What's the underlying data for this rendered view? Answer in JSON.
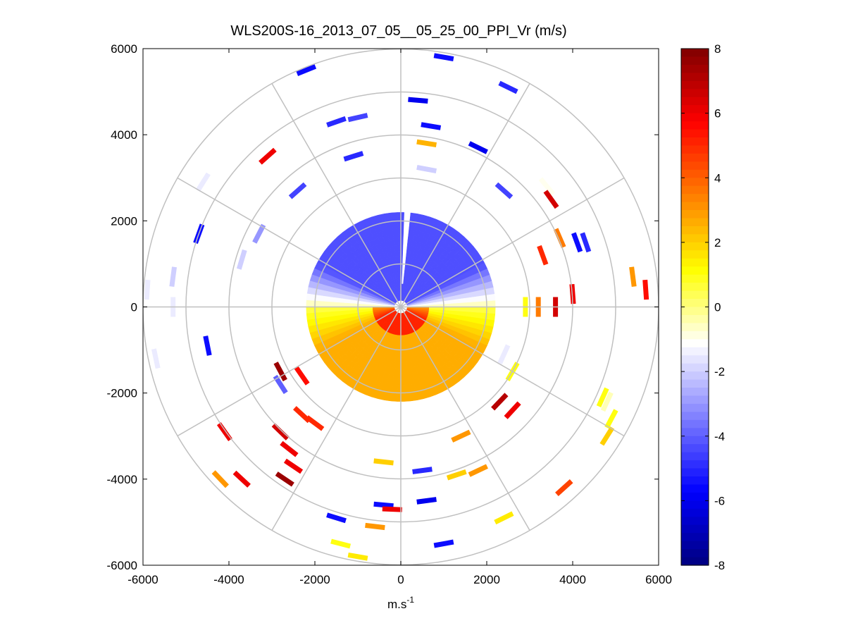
{
  "chart_data": {
    "type": "polar-scan-ppi",
    "title": "WLS200S-16_2013_07_05__05_25_00_PPI_Vr (m/s)",
    "xlabel_base": "m.s",
    "xlabel_exponent": "-1",
    "xlim": [
      -6000,
      6000
    ],
    "ylim": [
      -6000,
      6000
    ],
    "x_ticks": [
      -6000,
      -4000,
      -2000,
      0,
      2000,
      4000,
      6000
    ],
    "y_ticks": [
      -6000,
      -4000,
      -2000,
      0,
      2000,
      4000,
      6000
    ],
    "x_tick_labels": [
      "-6000",
      "-4000",
      "-2000",
      "0",
      "2000",
      "4000",
      "6000"
    ],
    "y_tick_labels": [
      "-6000",
      "-4000",
      "-2000",
      "0",
      "2000",
      "4000",
      "6000"
    ],
    "range_rings": [
      1000,
      2000,
      3000,
      4000,
      5000,
      6000
    ],
    "radial_spokes_deg": [
      0,
      30,
      60,
      90,
      120,
      150,
      180,
      210,
      240,
      270,
      300,
      330
    ],
    "colorbar": {
      "min": -8,
      "max": 8,
      "ticks": [
        8,
        6,
        4,
        2,
        0,
        -2,
        -4,
        -6,
        -8
      ],
      "tick_labels": [
        "8",
        "6",
        "4",
        "2",
        "0",
        "-2",
        "-4",
        "-6",
        "-8"
      ],
      "colormap": [
        "#00007f",
        "#0000ff",
        "#7f7fff",
        "#ffffff",
        "#ffff00",
        "#ff7f00",
        "#ff0000",
        "#7f0000"
      ]
    },
    "dense_region": {
      "range_min_m": 150,
      "range_max_m": 2200,
      "north_velocity_ms": -4.0,
      "south_velocity_ms": 2.2
    },
    "scattered_returns": [
      {
        "x": -2200,
        "y": 5500,
        "v": -5.5
      },
      {
        "x": 1000,
        "y": 5800,
        "v": -5.5
      },
      {
        "x": 2500,
        "y": 5100,
        "v": -5.0
      },
      {
        "x": 400,
        "y": 4800,
        "v": -6.0
      },
      {
        "x": -1500,
        "y": 4300,
        "v": -5.0
      },
      {
        "x": -1000,
        "y": 4400,
        "v": -4.5
      },
      {
        "x": 700,
        "y": 4200,
        "v": -5.5
      },
      {
        "x": 1800,
        "y": 3700,
        "v": -6.0
      },
      {
        "x": 600,
        "y": 3800,
        "v": 2.5
      },
      {
        "x": -3100,
        "y": 3500,
        "v": 6.0
      },
      {
        "x": -4600,
        "y": 2900,
        "v": -1.5
      },
      {
        "x": -1100,
        "y": 3500,
        "v": -5.0
      },
      {
        "x": 600,
        "y": 3200,
        "v": -2.0
      },
      {
        "x": 2400,
        "y": 2700,
        "v": -4.5
      },
      {
        "x": 3400,
        "y": 2800,
        "v": -1.0
      },
      {
        "x": 3500,
        "y": 2500,
        "v": 6.5
      },
      {
        "x": -2400,
        "y": 2700,
        "v": -4.5
      },
      {
        "x": -4700,
        "y": 1700,
        "v": -5.5
      },
      {
        "x": -3300,
        "y": 1700,
        "v": -3.0
      },
      {
        "x": 3700,
        "y": 1600,
        "v": 3.5
      },
      {
        "x": 4100,
        "y": 1500,
        "v": -5.5
      },
      {
        "x": 4300,
        "y": 1500,
        "v": -5.0
      },
      {
        "x": 3300,
        "y": 1200,
        "v": 5.0
      },
      {
        "x": -3700,
        "y": 1100,
        "v": -2.0
      },
      {
        "x": -5300,
        "y": 700,
        "v": -2.0
      },
      {
        "x": 5400,
        "y": 700,
        "v": 3.0
      },
      {
        "x": 5700,
        "y": 400,
        "v": 5.5
      },
      {
        "x": 4000,
        "y": 300,
        "v": 6.0
      },
      {
        "x": 3600,
        "y": 0,
        "v": 6.5
      },
      {
        "x": 3200,
        "y": 0,
        "v": 3.5
      },
      {
        "x": 2900,
        "y": 0,
        "v": 1.0
      },
      {
        "x": -5900,
        "y": 400,
        "v": -1.5
      },
      {
        "x": -5300,
        "y": 0,
        "v": -1.5
      },
      {
        "x": -4500,
        "y": -900,
        "v": -5.5
      },
      {
        "x": -5700,
        "y": -1200,
        "v": -1.5
      },
      {
        "x": -2800,
        "y": -1500,
        "v": 7.5
      },
      {
        "x": -2300,
        "y": -1600,
        "v": 5.5
      },
      {
        "x": -2800,
        "y": -1800,
        "v": -4.0
      },
      {
        "x": 4700,
        "y": -2100,
        "v": 1.0
      },
      {
        "x": 4800,
        "y": -2200,
        "v": -0.5
      },
      {
        "x": 4900,
        "y": -2600,
        "v": 1.0
      },
      {
        "x": 4800,
        "y": -3000,
        "v": 2.0
      },
      {
        "x": 2300,
        "y": -2200,
        "v": 7.0
      },
      {
        "x": 2600,
        "y": -2400,
        "v": 6.0
      },
      {
        "x": -2300,
        "y": -2500,
        "v": 5.0
      },
      {
        "x": -2000,
        "y": -2700,
        "v": 5.0
      },
      {
        "x": -4100,
        "y": -2900,
        "v": 6.0
      },
      {
        "x": -2800,
        "y": -2900,
        "v": 6.5
      },
      {
        "x": -2600,
        "y": -3300,
        "v": 6.0
      },
      {
        "x": -2500,
        "y": -3700,
        "v": 6.0
      },
      {
        "x": -3700,
        "y": -4000,
        "v": 6.0
      },
      {
        "x": -2700,
        "y": -4000,
        "v": 7.5
      },
      {
        "x": -4200,
        "y": -4000,
        "v": 3.0
      },
      {
        "x": 1800,
        "y": -3800,
        "v": 3.0
      },
      {
        "x": 1300,
        "y": -3900,
        "v": 2.0
      },
      {
        "x": 3800,
        "y": -4200,
        "v": 4.5
      },
      {
        "x": -400,
        "y": -3600,
        "v": 2.0
      },
      {
        "x": 500,
        "y": -3800,
        "v": -5.0
      },
      {
        "x": 600,
        "y": -4500,
        "v": -6.0
      },
      {
        "x": -400,
        "y": -4600,
        "v": -5.5
      },
      {
        "x": -1500,
        "y": -4900,
        "v": -5.5
      },
      {
        "x": -600,
        "y": -5100,
        "v": 3.0
      },
      {
        "x": -1400,
        "y": -5500,
        "v": 1.0
      },
      {
        "x": 1000,
        "y": -5500,
        "v": -5.5
      },
      {
        "x": 2400,
        "y": -4900,
        "v": 1.5
      },
      {
        "x": -1000,
        "y": -5800,
        "v": 1.5
      },
      {
        "x": -200,
        "y": -4700,
        "v": 6.0
      },
      {
        "x": 1400,
        "y": -3000,
        "v": 3.0
      },
      {
        "x": 2600,
        "y": -1500,
        "v": 1.0
      },
      {
        "x": 2400,
        "y": -1100,
        "v": -1.5
      }
    ]
  }
}
